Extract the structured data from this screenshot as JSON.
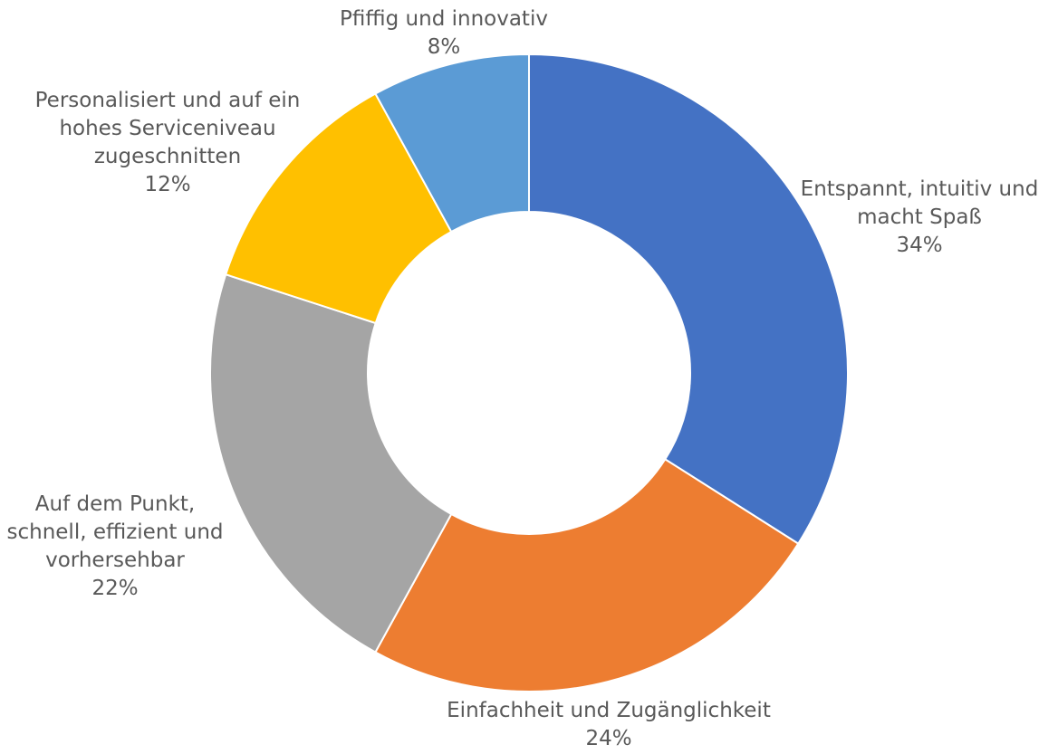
{
  "chart_data": {
    "type": "pie",
    "variant": "doughnut",
    "title": "",
    "slices": [
      {
        "label": "Entspannt, intuitiv und macht Spaß",
        "label_lines": [
          "Entspannt, intuitiv und",
          "macht Spaß"
        ],
        "value": 34,
        "value_label": "34%",
        "color": "#4472C4"
      },
      {
        "label": "Einfachheit und Zugänglichkeit",
        "label_lines": [
          "Einfachheit und Zugänglichkeit"
        ],
        "value": 24,
        "value_label": "24%",
        "color": "#ED7D31"
      },
      {
        "label": "Auf dem Punkt, schnell, effizient und vorhersehbar",
        "label_lines": [
          "Auf dem Punkt,",
          "schnell, effizient und",
          "vorhersehbar"
        ],
        "value": 22,
        "value_label": "22%",
        "color": "#A5A5A5"
      },
      {
        "label": "Personalisiert und auf ein hohes Serviceniveau zugeschnitten",
        "label_lines": [
          "Personalisiert und auf ein",
          "hohes Serviceniveau",
          "zugeschnitten"
        ],
        "value": 12,
        "value_label": "12%",
        "color": "#FFC000"
      },
      {
        "label": "Pfiffig und innovativ",
        "label_lines": [
          "Pfiffig und innovativ"
        ],
        "value": 8,
        "value_label": "8%",
        "color": "#5B9BD5"
      }
    ],
    "legend": "none",
    "label_color": "#595959"
  }
}
